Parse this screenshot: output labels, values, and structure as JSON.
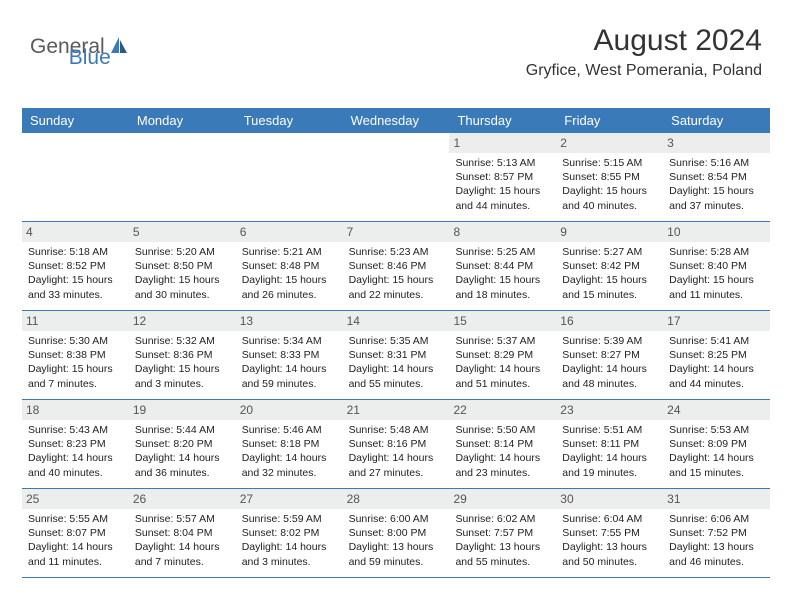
{
  "logo": {
    "text1": "General",
    "text2": "Blue"
  },
  "title": "August 2024",
  "location": "Gryfice, West Pomerania, Poland",
  "colors": {
    "header_bg": "#3a7ab8",
    "header_fg": "#ffffff",
    "daynum_bg": "#eceded",
    "row_border": "#3a7ab8",
    "logo_gray": "#5a5a5a",
    "logo_blue": "#3a7ab8"
  },
  "day_headers": [
    "Sunday",
    "Monday",
    "Tuesday",
    "Wednesday",
    "Thursday",
    "Friday",
    "Saturday"
  ],
  "weeks": [
    [
      null,
      null,
      null,
      null,
      {
        "n": "1",
        "sr": "5:13 AM",
        "ss": "8:57 PM",
        "dl": "15 hours and 44 minutes."
      },
      {
        "n": "2",
        "sr": "5:15 AM",
        "ss": "8:55 PM",
        "dl": "15 hours and 40 minutes."
      },
      {
        "n": "3",
        "sr": "5:16 AM",
        "ss": "8:54 PM",
        "dl": "15 hours and 37 minutes."
      }
    ],
    [
      {
        "n": "4",
        "sr": "5:18 AM",
        "ss": "8:52 PM",
        "dl": "15 hours and 33 minutes."
      },
      {
        "n": "5",
        "sr": "5:20 AM",
        "ss": "8:50 PM",
        "dl": "15 hours and 30 minutes."
      },
      {
        "n": "6",
        "sr": "5:21 AM",
        "ss": "8:48 PM",
        "dl": "15 hours and 26 minutes."
      },
      {
        "n": "7",
        "sr": "5:23 AM",
        "ss": "8:46 PM",
        "dl": "15 hours and 22 minutes."
      },
      {
        "n": "8",
        "sr": "5:25 AM",
        "ss": "8:44 PM",
        "dl": "15 hours and 18 minutes."
      },
      {
        "n": "9",
        "sr": "5:27 AM",
        "ss": "8:42 PM",
        "dl": "15 hours and 15 minutes."
      },
      {
        "n": "10",
        "sr": "5:28 AM",
        "ss": "8:40 PM",
        "dl": "15 hours and 11 minutes."
      }
    ],
    [
      {
        "n": "11",
        "sr": "5:30 AM",
        "ss": "8:38 PM",
        "dl": "15 hours and 7 minutes."
      },
      {
        "n": "12",
        "sr": "5:32 AM",
        "ss": "8:36 PM",
        "dl": "15 hours and 3 minutes."
      },
      {
        "n": "13",
        "sr": "5:34 AM",
        "ss": "8:33 PM",
        "dl": "14 hours and 59 minutes."
      },
      {
        "n": "14",
        "sr": "5:35 AM",
        "ss": "8:31 PM",
        "dl": "14 hours and 55 minutes."
      },
      {
        "n": "15",
        "sr": "5:37 AM",
        "ss": "8:29 PM",
        "dl": "14 hours and 51 minutes."
      },
      {
        "n": "16",
        "sr": "5:39 AM",
        "ss": "8:27 PM",
        "dl": "14 hours and 48 minutes."
      },
      {
        "n": "17",
        "sr": "5:41 AM",
        "ss": "8:25 PM",
        "dl": "14 hours and 44 minutes."
      }
    ],
    [
      {
        "n": "18",
        "sr": "5:43 AM",
        "ss": "8:23 PM",
        "dl": "14 hours and 40 minutes."
      },
      {
        "n": "19",
        "sr": "5:44 AM",
        "ss": "8:20 PM",
        "dl": "14 hours and 36 minutes."
      },
      {
        "n": "20",
        "sr": "5:46 AM",
        "ss": "8:18 PM",
        "dl": "14 hours and 32 minutes."
      },
      {
        "n": "21",
        "sr": "5:48 AM",
        "ss": "8:16 PM",
        "dl": "14 hours and 27 minutes."
      },
      {
        "n": "22",
        "sr": "5:50 AM",
        "ss": "8:14 PM",
        "dl": "14 hours and 23 minutes."
      },
      {
        "n": "23",
        "sr": "5:51 AM",
        "ss": "8:11 PM",
        "dl": "14 hours and 19 minutes."
      },
      {
        "n": "24",
        "sr": "5:53 AM",
        "ss": "8:09 PM",
        "dl": "14 hours and 15 minutes."
      }
    ],
    [
      {
        "n": "25",
        "sr": "5:55 AM",
        "ss": "8:07 PM",
        "dl": "14 hours and 11 minutes."
      },
      {
        "n": "26",
        "sr": "5:57 AM",
        "ss": "8:04 PM",
        "dl": "14 hours and 7 minutes."
      },
      {
        "n": "27",
        "sr": "5:59 AM",
        "ss": "8:02 PM",
        "dl": "14 hours and 3 minutes."
      },
      {
        "n": "28",
        "sr": "6:00 AM",
        "ss": "8:00 PM",
        "dl": "13 hours and 59 minutes."
      },
      {
        "n": "29",
        "sr": "6:02 AM",
        "ss": "7:57 PM",
        "dl": "13 hours and 55 minutes."
      },
      {
        "n": "30",
        "sr": "6:04 AM",
        "ss": "7:55 PM",
        "dl": "13 hours and 50 minutes."
      },
      {
        "n": "31",
        "sr": "6:06 AM",
        "ss": "7:52 PM",
        "dl": "13 hours and 46 minutes."
      }
    ]
  ],
  "labels": {
    "sunrise": "Sunrise:",
    "sunset": "Sunset:",
    "daylight": "Daylight:"
  }
}
